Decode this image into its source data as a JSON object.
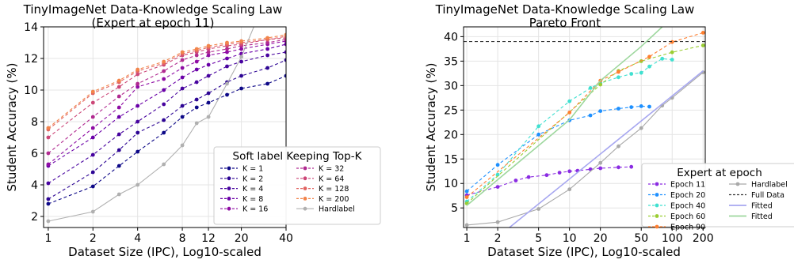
{
  "chart_data": [
    {
      "type": "line",
      "title": "TinyImageNet Data-Knowledge Scaling Law",
      "subtitle": "(Expert at epoch 11)",
      "xlabel": "Dataset Size (IPC), Log10-scaled",
      "ylabel": "Student Accuracy (%)",
      "xscale": "log",
      "xlim": [
        0.93,
        40
      ],
      "ylim": [
        1.3,
        14
      ],
      "xticks": [
        1,
        2,
        4,
        8,
        12,
        20,
        40
      ],
      "xtick_labels": [
        "1",
        "2",
        "4",
        "8",
        "12",
        "20",
        "40"
      ],
      "yticks": [
        2,
        4,
        6,
        8,
        10,
        12,
        14
      ],
      "ytick_labels": [
        "2",
        "4",
        "6",
        "8",
        "10",
        "12",
        "14"
      ],
      "grid": true,
      "legend": {
        "title": "Soft label Keeping Top-K",
        "placement": "bottom-right",
        "columns": 2
      },
      "x": [
        1,
        2,
        3,
        4,
        6,
        8,
        10,
        12,
        16,
        20,
        30,
        40
      ],
      "series": [
        {
          "name": "K = 1",
          "color": "#0d0887",
          "style": "dashed-marker",
          "values": [
            2.8,
            3.9,
            5.2,
            6.1,
            7.3,
            8.3,
            8.9,
            9.2,
            9.7,
            10.1,
            10.4,
            10.9
          ]
        },
        {
          "name": "K = 2",
          "color": "#2d0594",
          "style": "dashed-marker",
          "values": [
            3.1,
            4.8,
            6.2,
            7.3,
            8.1,
            9.0,
            9.4,
            9.8,
            10.5,
            10.9,
            11.4,
            11.9
          ]
        },
        {
          "name": "K = 4",
          "color": "#47039f",
          "style": "dashed-marker",
          "values": [
            4.1,
            5.9,
            7.2,
            8.0,
            9.1,
            10.1,
            10.5,
            10.9,
            11.5,
            11.8,
            12.2,
            12.4
          ]
        },
        {
          "name": "K = 8",
          "color": "#6a00a8",
          "style": "dashed-marker",
          "values": [
            5.2,
            7.0,
            8.3,
            9.0,
            10.0,
            10.8,
            11.3,
            11.6,
            12.0,
            12.3,
            12.6,
            12.9
          ]
        },
        {
          "name": "K = 16",
          "color": "#8f0da4",
          "style": "dashed-marker",
          "values": [
            5.3,
            7.6,
            8.9,
            10.2,
            10.7,
            11.4,
            11.8,
            12.2,
            12.4,
            12.6,
            12.9,
            13.1
          ]
        },
        {
          "name": "K = 32",
          "color": "#b12a90",
          "style": "dashed-marker",
          "values": [
            6.0,
            8.3,
            9.6,
            10.4,
            11.2,
            11.9,
            12.2,
            12.4,
            12.6,
            12.8,
            13.0,
            13.2
          ]
        },
        {
          "name": "K = 64",
          "color": "#cc4778",
          "style": "dashed-marker",
          "values": [
            7.0,
            9.2,
            10.2,
            11.0,
            11.6,
            12.2,
            12.4,
            12.6,
            12.8,
            12.9,
            13.2,
            13.3
          ]
        },
        {
          "name": "K = 128",
          "color": "#e16462",
          "style": "dashed-marker",
          "values": [
            7.5,
            9.8,
            10.5,
            11.2,
            11.7,
            12.3,
            12.5,
            12.7,
            12.9,
            13.0,
            13.2,
            13.4
          ]
        },
        {
          "name": "K = 200",
          "color": "#f2844b",
          "style": "dashed-marker",
          "values": [
            7.6,
            9.9,
            10.6,
            11.3,
            11.8,
            12.4,
            12.6,
            12.8,
            13.0,
            13.1,
            13.3,
            13.5
          ]
        },
        {
          "name": "Hardlabel",
          "color": "#b0b0b0",
          "style": "solid-marker",
          "x": [
            1,
            2,
            3,
            4,
            6,
            8,
            10,
            12,
            16,
            20,
            25
          ],
          "values": [
            1.7,
            2.3,
            3.4,
            4.0,
            5.3,
            6.5,
            7.9,
            8.3,
            10.4,
            12.1,
            14.3
          ]
        }
      ]
    },
    {
      "type": "line",
      "title": "TinyImageNet Data-Knowledge Scaling Law",
      "subtitle": "Pareto Front",
      "xlabel": "Dataset Size (IPC), Log10-scaled",
      "ylabel": "Student Accuracy (%)",
      "xscale": "log",
      "xlim": [
        0.93,
        210
      ],
      "ylim": [
        1,
        42
      ],
      "xticks": [
        1,
        2,
        5,
        10,
        20,
        50,
        100,
        200
      ],
      "xtick_labels": [
        "1",
        "2",
        "5",
        "10",
        "20",
        "50",
        "100",
        "200"
      ],
      "yticks": [
        5,
        10,
        15,
        20,
        25,
        30,
        35,
        40
      ],
      "ytick_labels": [
        "5",
        "10",
        "15",
        "20",
        "25",
        "30",
        "35",
        "40"
      ],
      "grid": true,
      "legend": {
        "title": "Expert at epoch",
        "placement": "bottom-right",
        "columns": 2
      },
      "series": [
        {
          "name": "Epoch 11",
          "color": "#8a2be2",
          "style": "dashed-marker",
          "x": [
            1,
            2,
            3,
            4,
            6,
            8,
            10,
            12,
            16,
            20,
            30,
            40
          ],
          "values": [
            7.6,
            9.3,
            10.6,
            11.3,
            11.7,
            12.2,
            12.5,
            12.6,
            12.9,
            13.1,
            13.3,
            13.4
          ]
        },
        {
          "name": "Epoch 20",
          "color": "#1e90ff",
          "style": "dashed-marker",
          "x": [
            1,
            2,
            5,
            10,
            16,
            20,
            30,
            40,
            50,
            60
          ],
          "values": [
            8.4,
            13.8,
            20.0,
            22.9,
            23.9,
            24.8,
            25.3,
            25.6,
            25.8,
            25.7
          ]
        },
        {
          "name": "Epoch 40",
          "color": "#40e0d0",
          "style": "dashed-marker",
          "x": [
            1,
            2,
            5,
            10,
            16,
            20,
            30,
            40,
            50,
            60,
            80,
            100
          ],
          "values": [
            6.3,
            11.8,
            21.7,
            26.8,
            29.5,
            30.5,
            31.7,
            32.4,
            32.6,
            33.9,
            35.5,
            35.3
          ]
        },
        {
          "name": "Epoch 60",
          "color": "#9acd32",
          "style": "dashed-marker",
          "x": [
            1,
            20,
            30,
            50,
            100,
            200
          ],
          "values": [
            5.9,
            30.2,
            33.0,
            35.0,
            36.8,
            38.2
          ]
        },
        {
          "name": "Epoch 90",
          "color": "#ff7f30",
          "style": "dashed-marker",
          "x": [
            1,
            10,
            20,
            30,
            60,
            100,
            200
          ],
          "values": [
            7.2,
            24.5,
            31.0,
            32.8,
            35.9,
            38.9,
            40.8
          ]
        },
        {
          "name": "Hardlabel",
          "color": "#a9a9a9",
          "style": "solid-marker",
          "x": [
            1,
            2,
            5,
            10,
            20,
            30,
            50,
            80,
            100,
            200
          ],
          "values": [
            1.5,
            2.1,
            4.8,
            8.8,
            14.2,
            17.6,
            21.3,
            25.9,
            27.5,
            32.7
          ]
        },
        {
          "name": "Full Data",
          "color": "#333333",
          "style": "dashed",
          "x": [
            0.93,
            210
          ],
          "values": [
            39.0,
            39.0
          ]
        },
        {
          "name": "Fitted",
          "color": "#a7a7f0",
          "style": "line",
          "x": [
            2.6,
            200
          ],
          "values": [
            1,
            33.0
          ]
        },
        {
          "name": "Fitted",
          "color": "#9dd79d",
          "style": "line",
          "x": [
            1.0,
            10,
            20,
            50,
            80
          ],
          "values": [
            5.5,
            23.0,
            31.0,
            38.0,
            42.0
          ]
        }
      ]
    }
  ]
}
